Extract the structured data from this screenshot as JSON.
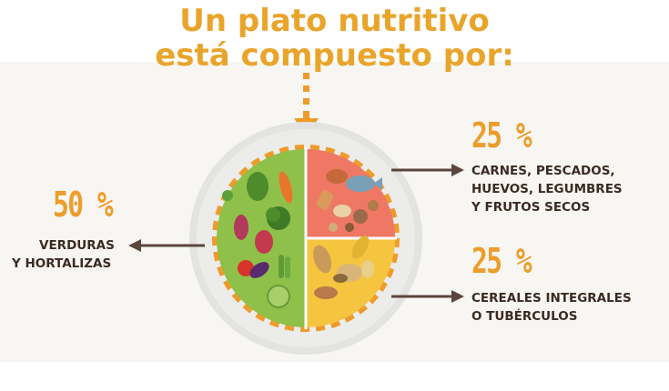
{
  "title": {
    "line1": "Un plato nutritivo",
    "line2": "está compuesto por:"
  },
  "sections": {
    "verduras": {
      "percent": "50 %",
      "line1": "VERDURAS",
      "line2": "Y HORTALIZAS"
    },
    "proteinas": {
      "percent": "25 %",
      "line1": "CARNES, PESCADOS,",
      "line2": "HUEVOS, LEGUMBRES",
      "line3": "Y FRUTOS SECOS"
    },
    "cereales": {
      "percent": "25 %",
      "line1": "CEREALES INTEGRALES",
      "line2": "O TUBÉRCULOS"
    }
  },
  "colors": {
    "title": "#e9a52b",
    "percent": "#ec9d2a",
    "caption": "#3b2a22",
    "green_section": "#8fc14a",
    "red_section": "#ee7864",
    "yellow_section": "#f5c540",
    "dash_ring": "#ef9b2c",
    "arrow": "#5a463c"
  }
}
